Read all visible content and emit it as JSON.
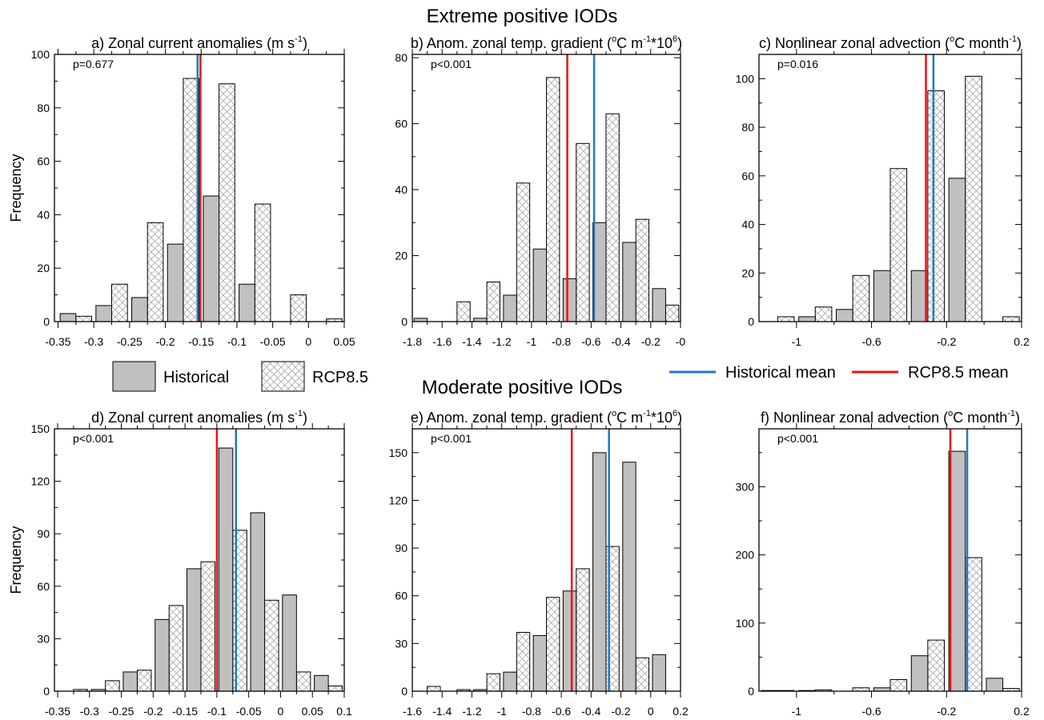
{
  "headings": {
    "extreme": "Extreme positive IODs",
    "moderate": "Moderate positive IODs"
  },
  "legend": {
    "historical": "Historical",
    "rcp85": "RCP8.5",
    "historical_mean": "Historical mean",
    "rcp85_mean": "RCP8.5 mean",
    "historical_fill": "#c0c0c0",
    "historical_mean_color": "#1f78c8",
    "rcp85_mean_color": "#ee1111"
  },
  "chart_data": [
    {
      "type": "bar",
      "panel": "a",
      "title": "a) Zonal current anomalies (m s",
      "title_sup": "-1",
      "title_end": ")",
      "ylabel": "Frequency",
      "annotation": "p=0.677",
      "xlim": [
        -0.355,
        0.05
      ],
      "ylim": [
        0,
        100
      ],
      "xticks": [
        -0.35,
        -0.3,
        -0.25,
        -0.2,
        -0.15,
        -0.1,
        -0.05,
        0,
        0.05
      ],
      "xtick_labels": [
        "-0.35",
        "-0.3",
        "-0.25",
        "-0.2",
        "-0.15",
        "-0.1",
        "-0.05",
        "0",
        "0.05"
      ],
      "yticks": [
        0,
        20,
        40,
        60,
        80,
        100
      ],
      "bin_centers": [
        -0.325,
        -0.275,
        -0.225,
        -0.175,
        -0.125,
        -0.075,
        -0.025,
        0.025
      ],
      "series": [
        {
          "name": "Historical",
          "values": [
            3,
            6,
            9,
            29,
            47,
            14,
            0,
            0
          ]
        },
        {
          "name": "RCP8.5",
          "values": [
            2,
            14,
            37,
            91,
            89,
            44,
            10,
            1
          ]
        }
      ],
      "mean_lines": {
        "Historical mean": -0.155,
        "RCP8.5 mean": -0.151
      }
    },
    {
      "type": "bar",
      "panel": "b",
      "title": "b) Anom. zonal temp. gradient (",
      "title_degree": "o",
      "title_mid": "C m",
      "title_sup": "-1",
      "title_mid2": "*10",
      "title_sup2": "6",
      "title_end": ")",
      "annotation": "p<0.001",
      "xlim": [
        -1.8,
        0
      ],
      "ylim": [
        0,
        81
      ],
      "xticks": [
        -1.8,
        -1.6,
        -1.4,
        -1.2,
        -1,
        -0.8,
        -0.6,
        -0.4,
        -0.2,
        0
      ],
      "xtick_labels": [
        "-1.8",
        "-1.6",
        "-1.4",
        "-1.2",
        "-1",
        "-0.8",
        "-0.6",
        "-0.4",
        "-0.2",
        "-0"
      ],
      "yticks": [
        0,
        20,
        40,
        60,
        80
      ],
      "bin_centers": [
        -1.7,
        -1.5,
        -1.3,
        -1.1,
        -0.9,
        -0.7,
        -0.5,
        -0.3,
        -0.1
      ],
      "series": [
        {
          "name": "Historical",
          "values": [
            1,
            0,
            1,
            8,
            22,
            13,
            30,
            24,
            10
          ]
        },
        {
          "name": "RCP8.5",
          "values": [
            0,
            6,
            12,
            42,
            74,
            54,
            63,
            31,
            5
          ]
        }
      ],
      "mean_lines": {
        "Historical mean": -0.58,
        "RCP8.5 mean": -0.76
      }
    },
    {
      "type": "bar",
      "panel": "c",
      "title": "c) Nonlinear zonal advection (",
      "title_degree": "o",
      "title_mid": "C month",
      "title_sup": "-1",
      "title_end": ")",
      "annotation": "p=0.016",
      "xlim": [
        -1.2,
        0.2
      ],
      "ylim": [
        0,
        110
      ],
      "xticks": [
        -1,
        -0.6,
        -0.2,
        0.2
      ],
      "xtick_labels": [
        "-1",
        "-0.6",
        "-0.2",
        "0.2"
      ],
      "yticks": [
        0,
        20,
        40,
        60,
        80,
        100
      ],
      "bin_centers": [
        -1.1,
        -0.9,
        -0.7,
        -0.5,
        -0.3,
        -0.1,
        0.1
      ],
      "series": [
        {
          "name": "Historical",
          "values": [
            0,
            2,
            5,
            21,
            21,
            59,
            0
          ]
        },
        {
          "name": "RCP8.5",
          "values": [
            2,
            6,
            19,
            63,
            95,
            101,
            2
          ]
        }
      ],
      "mean_lines": {
        "Historical mean": -0.27,
        "RCP8.5 mean": -0.31
      }
    },
    {
      "type": "bar",
      "panel": "d",
      "title": "d) Zonal current anomalies (m s",
      "title_sup": "-1",
      "title_end": ")",
      "ylabel": "Frequency",
      "annotation": "p<0.001",
      "xlim": [
        -0.355,
        0.1
      ],
      "ylim": [
        0,
        150
      ],
      "xticks": [
        -0.35,
        -0.3,
        -0.25,
        -0.2,
        -0.15,
        -0.1,
        -0.05,
        0,
        0.05,
        0.1
      ],
      "xtick_labels": [
        "-0.35",
        "-0.3",
        "-0.25",
        "-0.2",
        "-0.15",
        "-0.1",
        "-0.05",
        "0",
        "0.05",
        "0.1"
      ],
      "yticks": [
        0,
        30,
        60,
        90,
        120,
        150
      ],
      "bin_centers": [
        -0.325,
        -0.275,
        -0.225,
        -0.175,
        -0.125,
        -0.075,
        -0.025,
        0.025,
        0.075
      ],
      "series": [
        {
          "name": "Historical",
          "values": [
            0,
            1,
            11,
            41,
            70,
            139,
            102,
            55,
            9
          ]
        },
        {
          "name": "RCP8.5",
          "values": [
            1,
            6,
            12,
            49,
            74,
            92,
            52,
            11,
            3
          ]
        }
      ],
      "mean_lines": {
        "Historical mean": -0.07,
        "RCP8.5 mean": -0.1
      }
    },
    {
      "type": "bar",
      "panel": "e",
      "title": "e) Anom. zonal temp. gradient (",
      "title_degree": "o",
      "title_mid": "C m",
      "title_sup": "-1",
      "title_mid2": "*10",
      "title_sup2": "6",
      "title_end": ")",
      "annotation": "p<0.001",
      "xlim": [
        -1.6,
        0.2
      ],
      "ylim": [
        0,
        165
      ],
      "xticks": [
        -1.6,
        -1.4,
        -1.2,
        -1,
        -0.8,
        -0.6,
        -0.4,
        -0.2,
        0,
        0.2
      ],
      "xtick_labels": [
        "-1.6",
        "-1.4",
        "-1.2",
        "-1",
        "-0.8",
        "-0.6",
        "-0.4",
        "-0.2",
        "0",
        "0.2"
      ],
      "yticks": [
        0,
        30,
        60,
        90,
        120,
        150
      ],
      "bin_centers": [
        -1.5,
        -1.3,
        -1.1,
        -0.9,
        -0.7,
        -0.5,
        -0.3,
        -0.1,
        0.1
      ],
      "series": [
        {
          "name": "Historical",
          "values": [
            0,
            0,
            1,
            12,
            35,
            63,
            150,
            144,
            23
          ]
        },
        {
          "name": "RCP8.5",
          "values": [
            3,
            1,
            11,
            37,
            59,
            77,
            91,
            21,
            0
          ]
        }
      ],
      "mean_lines": {
        "Historical mean": -0.28,
        "RCP8.5 mean": -0.53
      }
    },
    {
      "type": "bar",
      "panel": "f",
      "title": "f) Nonlinear zonal advection (",
      "title_degree": "o",
      "title_mid": "C month",
      "title_sup": "-1",
      "title_end": ")",
      "annotation": "p<0.001",
      "xlim": [
        -1.2,
        0.2
      ],
      "ylim": [
        0,
        385
      ],
      "xticks": [
        -1,
        -0.6,
        -0.2,
        0.2
      ],
      "xtick_labels": [
        "-1",
        "-0.6",
        "-0.2",
        "0.2"
      ],
      "yticks": [
        0,
        100,
        200,
        300
      ],
      "bin_centers": [
        -1.1,
        -0.9,
        -0.7,
        -0.5,
        -0.3,
        -0.1,
        0.1
      ],
      "series": [
        {
          "name": "Historical",
          "values": [
            1,
            1,
            0,
            5,
            52,
            352,
            19
          ]
        },
        {
          "name": "RCP8.5",
          "values": [
            1,
            2,
            5,
            17,
            75,
            196,
            4
          ]
        }
      ],
      "mean_lines": {
        "Historical mean": -0.09,
        "RCP8.5 mean": -0.18
      }
    }
  ]
}
